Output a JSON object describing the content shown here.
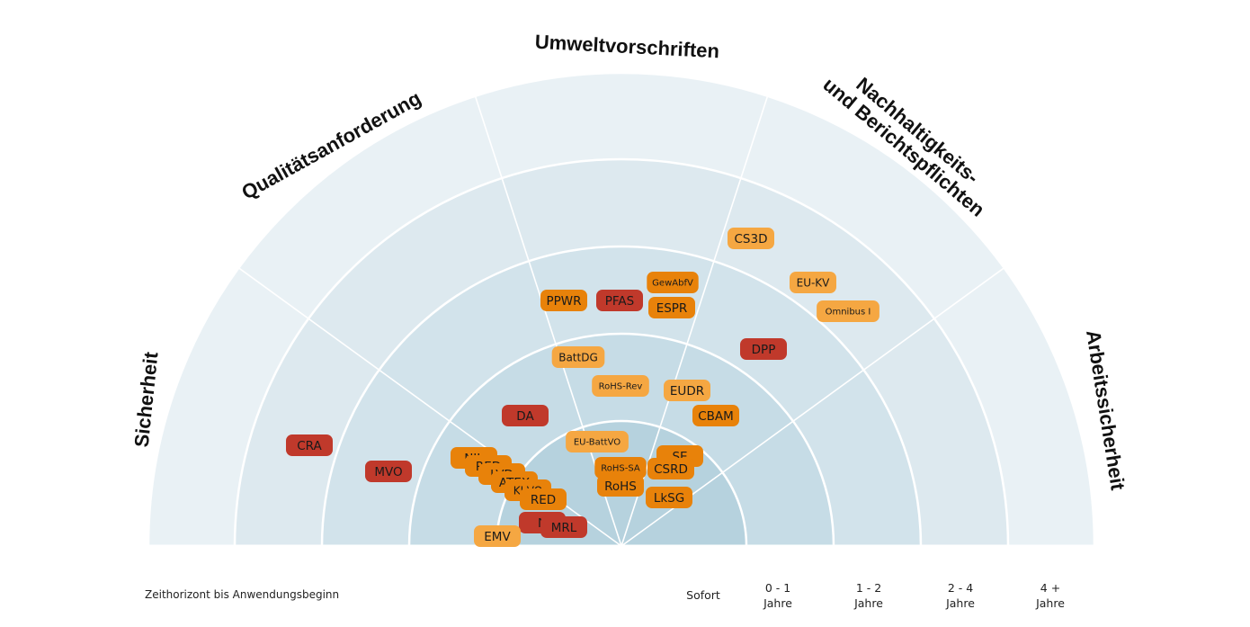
{
  "categories": [
    "Sicherheit",
    "Qualitätsanforderung",
    "Umweltvorschriften",
    "Nachhaltigkeits-\nund Berichtspflichten",
    "Arbeitssicherheit"
  ],
  "legend": {
    "title": "Zeithorizont bis Anwendungsbeginn",
    "ticks": [
      "Sofort",
      "0 - 1\nJahre",
      "1 - 2\nJahre",
      "2 - 4\nJahre",
      "4 +\nJahre"
    ]
  },
  "colors": {
    "dark_red": "#c0392b",
    "orange": "#e8820a",
    "light_orange": "#f5a742",
    "ring_fills": [
      "#b6d2de",
      "#c6dce6",
      "#d2e3eb",
      "#dde9ef",
      "#e9f1f5"
    ]
  },
  "items": [
    {
      "label": "CS3D",
      "color": "light_orange",
      "ring": "2-4",
      "category": "Nachhaltigkeits- und Berichtspflichten"
    },
    {
      "label": "EU-KV",
      "color": "light_orange",
      "ring": "2-4",
      "category": "Nachhaltigkeits- und Berichtspflichten"
    },
    {
      "label": "Omnibus I",
      "color": "light_orange",
      "ring": "2-4",
      "category": "Nachhaltigkeits- und Berichtspflichten"
    },
    {
      "label": "GewAbfV",
      "color": "orange",
      "ring": "1-2",
      "category": "Umweltvorschriften"
    },
    {
      "label": "ESPR",
      "color": "orange",
      "ring": "1-2",
      "category": "Umweltvorschriften"
    },
    {
      "label": "PPWR",
      "color": "orange",
      "ring": "1-2",
      "category": "Umweltvorschriften"
    },
    {
      "label": "PFAS",
      "color": "dark_red",
      "ring": "1-2",
      "category": "Umweltvorschriften"
    },
    {
      "label": "DPP",
      "color": "dark_red",
      "ring": "1-2",
      "category": "Nachhaltigkeits- und Berichtspflichten"
    },
    {
      "label": "BattDG",
      "color": "light_orange",
      "ring": "0-1",
      "category": "Qualitätsanforderung"
    },
    {
      "label": "RoHS-Rev",
      "color": "light_orange",
      "ring": "0-1",
      "category": "Umweltvorschriften"
    },
    {
      "label": "EUDR",
      "color": "light_orange",
      "ring": "0-1",
      "category": "Umweltvorschriften"
    },
    {
      "label": "CBAM",
      "color": "orange",
      "ring": "0-1",
      "category": "Nachhaltigkeits- und Berichtspflichten"
    },
    {
      "label": "DA",
      "color": "dark_red",
      "ring": "0-1",
      "category": "Qualitätsanforderung"
    },
    {
      "label": "CRA",
      "color": "dark_red",
      "ring": "2-4",
      "category": "Sicherheit"
    },
    {
      "label": "MVO",
      "color": "dark_red",
      "ring": "1-2",
      "category": "Sicherheit"
    },
    {
      "label": "EU-BattVO",
      "color": "light_orange",
      "ring": "Sofort",
      "category": "Umweltvorschriften"
    },
    {
      "label": "SE",
      "color": "orange",
      "ring": "Sofort",
      "category": "Nachhaltigkeits- und Berichtspflichten"
    },
    {
      "label": "RoHS-SA",
      "color": "orange",
      "ring": "Sofort",
      "category": "Umweltvorschriften"
    },
    {
      "label": "CSRD",
      "color": "orange",
      "ring": "Sofort",
      "category": "Nachhaltigkeits- und Berichtspflichten"
    },
    {
      "label": "RoHS",
      "color": "orange",
      "ring": "Sofort",
      "category": "Umweltvorschriften"
    },
    {
      "label": "LkSG",
      "color": "orange",
      "ring": "Sofort",
      "category": "Nachhaltigkeits- und Berichtspflichten"
    },
    {
      "label": "NIL",
      "color": "orange",
      "ring": "0-1",
      "category": "Sicherheit"
    },
    {
      "label": "RED",
      "color": "orange",
      "ring": "0-1",
      "category": "Sicherheit"
    },
    {
      "label": "LVD",
      "color": "orange",
      "ring": "0-1",
      "category": "Sicherheit"
    },
    {
      "label": "ATEX",
      "color": "orange",
      "ring": "0-1",
      "category": "Sicherheit"
    },
    {
      "label": "KI-VO",
      "color": "orange",
      "ring": "0-1",
      "category": "Sicherheit"
    },
    {
      "label": "RED",
      "color": "orange",
      "ring": "0-1",
      "category": "Sicherheit"
    },
    {
      "label": "N",
      "color": "dark_red",
      "ring": "0-1",
      "category": "Sicherheit"
    },
    {
      "label": "MRL",
      "color": "dark_red",
      "ring": "0-1",
      "category": "Sicherheit"
    },
    {
      "label": "EMV",
      "color": "light_orange",
      "ring": "0-1",
      "category": "Sicherheit"
    }
  ]
}
